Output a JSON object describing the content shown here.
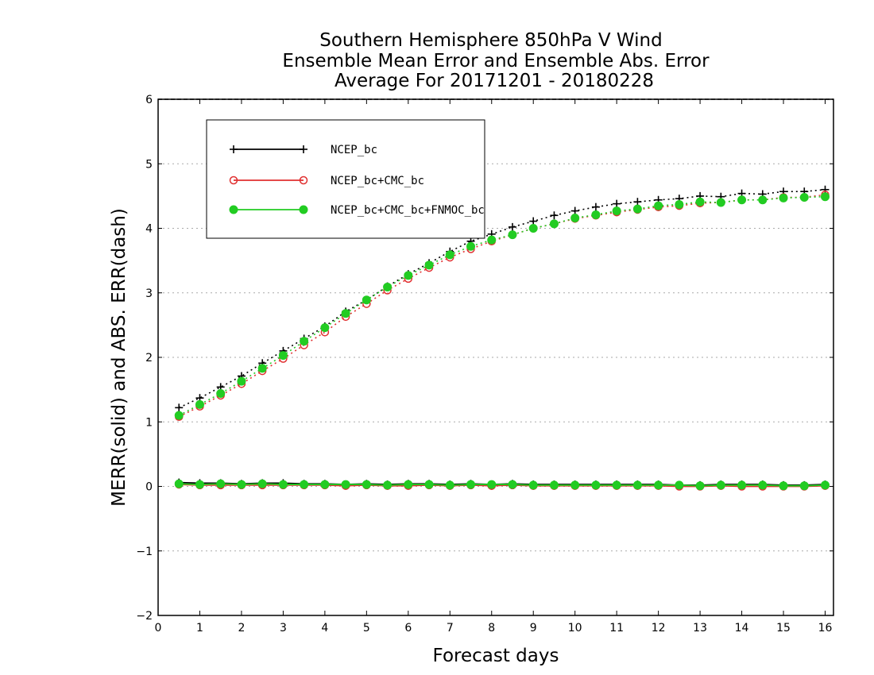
{
  "chart_data": {
    "type": "line",
    "title_lines": [
      "Southern Hemisphere 850hPa V Wind",
      "Ensemble Mean Error and Ensemble Abs. Error",
      "Average For 20171201 - 20180228"
    ],
    "xlabel": "Forecast days",
    "ylabel": "MERR(solid) and ABS. ERR(dash)",
    "xlim": [
      0,
      16.2
    ],
    "ylim": [
      -2,
      6
    ],
    "x_ticks": [
      "0",
      "1",
      "2",
      "3",
      "4",
      "5",
      "6",
      "7",
      "8",
      "9",
      "10",
      "11",
      "12",
      "13",
      "14",
      "15",
      "16"
    ],
    "y_ticks": [
      "−2",
      "−1",
      "0",
      "1",
      "2",
      "3",
      "4",
      "5",
      "6"
    ],
    "grid": "horizontal dotted",
    "legend_position": "top-left",
    "x": [
      0.5,
      1,
      1.5,
      2,
      2.5,
      3,
      3.5,
      4,
      4.5,
      5,
      5.5,
      6,
      6.5,
      7,
      7.5,
      8,
      8.5,
      9,
      9.5,
      10,
      10.5,
      11,
      11.5,
      12,
      12.5,
      13,
      13.5,
      14,
      14.5,
      15,
      15.5,
      16
    ],
    "series": [
      {
        "name": "NCEP_bc",
        "color": "#000000",
        "marker": "plus",
        "abs_err": [
          1.22,
          1.37,
          1.54,
          1.71,
          1.91,
          2.1,
          2.29,
          2.48,
          2.71,
          2.89,
          3.1,
          3.29,
          3.46,
          3.64,
          3.8,
          3.91,
          4.02,
          4.11,
          4.2,
          4.27,
          4.33,
          4.38,
          4.41,
          4.44,
          4.46,
          4.5,
          4.49,
          4.54,
          4.53,
          4.57,
          4.57,
          4.6
        ],
        "merr": [
          0.06,
          0.05,
          0.05,
          0.04,
          0.05,
          0.05,
          0.04,
          0.04,
          0.03,
          0.04,
          0.03,
          0.04,
          0.04,
          0.03,
          0.04,
          0.03,
          0.04,
          0.03,
          0.03,
          0.03,
          0.03,
          0.03,
          0.03,
          0.03,
          0.02,
          0.02,
          0.03,
          0.03,
          0.03,
          0.02,
          0.02,
          0.03
        ]
      },
      {
        "name": "NCEP_bc+CMC_bc",
        "color": "#e03030",
        "marker": "circle-open",
        "abs_err": [
          1.08,
          1.24,
          1.41,
          1.59,
          1.79,
          1.98,
          2.19,
          2.39,
          2.63,
          2.83,
          3.04,
          3.22,
          3.39,
          3.55,
          3.68,
          3.8,
          3.9,
          4.0,
          4.07,
          4.15,
          4.2,
          4.25,
          4.29,
          4.33,
          4.35,
          4.39,
          4.4,
          4.44,
          4.44,
          4.48,
          4.48,
          4.52
        ],
        "merr": [
          0.03,
          0.02,
          0.02,
          0.02,
          0.02,
          0.02,
          0.02,
          0.02,
          0.01,
          0.02,
          0.01,
          0.01,
          0.02,
          0.01,
          0.02,
          0.01,
          0.02,
          0.01,
          0.01,
          0.01,
          0.01,
          0.01,
          0.01,
          0.01,
          0.0,
          0.0,
          0.01,
          0.0,
          0.0,
          0.0,
          0.0,
          0.01
        ]
      },
      {
        "name": "NCEP_bc+CMC_bc+FNMOC_bc",
        "color": "#22cc22",
        "marker": "circle-filled",
        "abs_err": [
          1.1,
          1.27,
          1.44,
          1.63,
          1.83,
          2.03,
          2.25,
          2.46,
          2.68,
          2.89,
          3.09,
          3.27,
          3.43,
          3.59,
          3.72,
          3.82,
          3.9,
          4.0,
          4.07,
          4.16,
          4.21,
          4.27,
          4.3,
          4.35,
          4.37,
          4.41,
          4.4,
          4.44,
          4.44,
          4.47,
          4.48,
          4.49
        ],
        "merr": [
          0.04,
          0.03,
          0.04,
          0.03,
          0.04,
          0.03,
          0.03,
          0.03,
          0.03,
          0.03,
          0.02,
          0.03,
          0.03,
          0.02,
          0.03,
          0.03,
          0.03,
          0.02,
          0.02,
          0.02,
          0.02,
          0.02,
          0.02,
          0.02,
          0.02,
          0.01,
          0.02,
          0.02,
          0.02,
          0.01,
          0.01,
          0.02
        ]
      }
    ]
  }
}
